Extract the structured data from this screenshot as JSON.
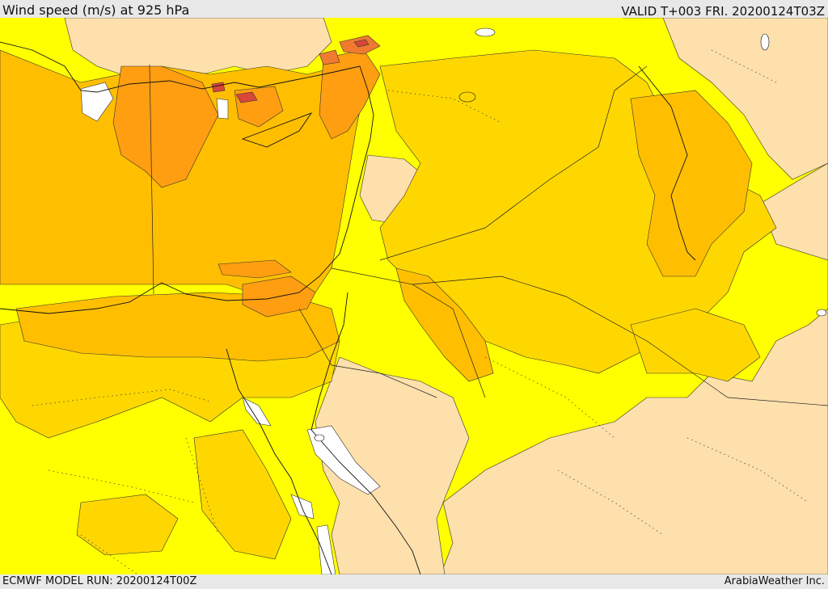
{
  "header": {
    "title": "Wind speed (m/s) at 925 hPa",
    "valid": "VALID T+003 FRI. 20200124T03Z"
  },
  "footer": {
    "model_run": "ECMWF MODEL RUN: 20200124T00Z",
    "credit": "ArabiaWeather Inc."
  },
  "colors": {
    "calm_white": "#ffffff",
    "light_wheat": "#fde0ac",
    "yellow": "#ffff00",
    "gold": "#ffd700",
    "amber": "#ffbf00",
    "orange": "#ff9e10",
    "dark_orange": "#f07a30",
    "red_core": "#d9463a",
    "line": "#333333"
  }
}
